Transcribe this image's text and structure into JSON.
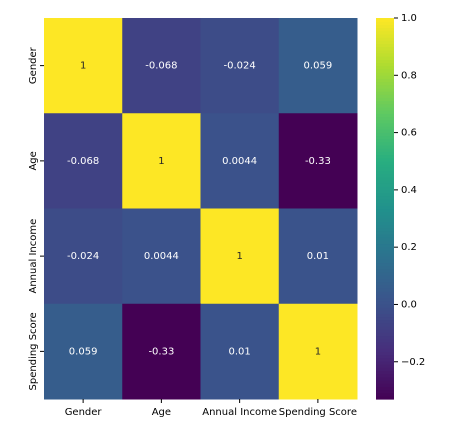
{
  "chart_data": {
    "type": "heatmap",
    "x": [
      "Gender",
      "Age",
      "Annual Income",
      "Spending Score"
    ],
    "y": [
      "Gender",
      "Age",
      "Annual Income",
      "Spending Score"
    ],
    "values": [
      [
        1,
        -0.068,
        -0.024,
        0.059
      ],
      [
        -0.068,
        1,
        0.0044,
        -0.33
      ],
      [
        -0.024,
        0.0044,
        1,
        0.01
      ],
      [
        0.059,
        -0.33,
        0.01,
        1
      ]
    ],
    "colormap": "viridis",
    "clim": [
      -0.33,
      1
    ],
    "cticks": [
      {
        "value": -0.2,
        "label": "−0.2"
      },
      {
        "value": 0,
        "label": "0.0"
      },
      {
        "value": 0.2,
        "label": "0.2"
      },
      {
        "value": 0.4,
        "label": "0.4"
      },
      {
        "value": 0.6,
        "label": "0.6"
      },
      {
        "value": 0.8,
        "label": "0.8"
      },
      {
        "value": 1,
        "label": "1.0"
      }
    ]
  }
}
